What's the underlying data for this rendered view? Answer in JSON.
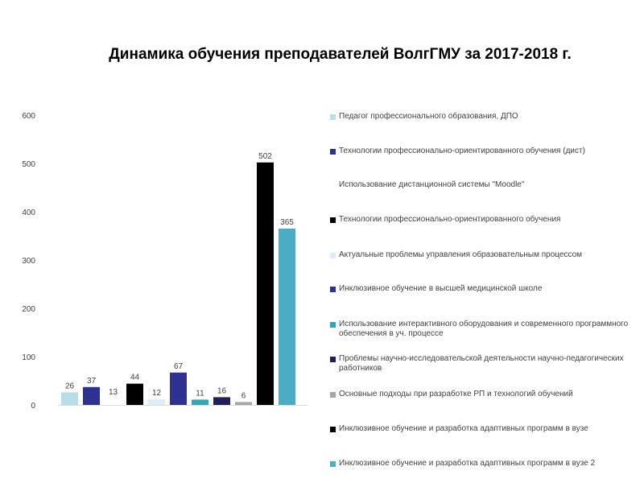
{
  "chart_data": {
    "type": "bar",
    "title": "Динамика обучения преподавателей ВолгГМУ за 2017-2018  г.",
    "ylim": [
      0,
      600
    ],
    "yticks": [
      0,
      100,
      200,
      300,
      400,
      500,
      600
    ],
    "grid": false,
    "legend_position": "right",
    "series": [
      {
        "name": "Педагог профессионального образования, ДПО",
        "value": 26,
        "value_label": "26",
        "color": "#b7dde8"
      },
      {
        "name": "Технологии профессионально-ориентированного обучения (дист)",
        "value": 37,
        "value_label": "37",
        "color": "#2e3192"
      },
      {
        "name": "Использование дистанционной системы \"Moodle\"",
        "value": 13,
        "value_label": "13",
        "color": "#ffffff"
      },
      {
        "name": "Технологии профессионально-ориентированного обучения",
        "value": 44,
        "value_label": "44",
        "color": "#000000"
      },
      {
        "name": "Актуальные проблемы управления образовательным процессом",
        "value": 12,
        "value_label": "12",
        "color": "#dbeef3"
      },
      {
        "name": "Инклюзивное обучение в высшей медицинской школе",
        "value": 67,
        "value_label": "67",
        "color": "#2e3192"
      },
      {
        "name": "Использование интерактивного оборудования  и современного программного обеспечения в уч.  процессе",
        "value": 11,
        "value_label": "11",
        "color": "#31a6b4"
      },
      {
        "name": "Проблемы научно-исследовательской деятельности научно-педагогических работников",
        "value": 16,
        "value_label": "16",
        "color": "#1f1f5c"
      },
      {
        "name": "Основные подходы при разработке РП и технологий обучений",
        "value": 6,
        "value_label": "6",
        "color": "#a6a6a6"
      },
      {
        "name": "Инклюзивное обучение и разработка адаптивных программ в вузе",
        "value": 502,
        "value_label": "502",
        "color": "#000000"
      },
      {
        "name": "Инклюзивное обучение и разработка адаптивных программ в вузе  2",
        "value": 365,
        "value_label": "365",
        "color": "#4bacc6"
      }
    ]
  }
}
